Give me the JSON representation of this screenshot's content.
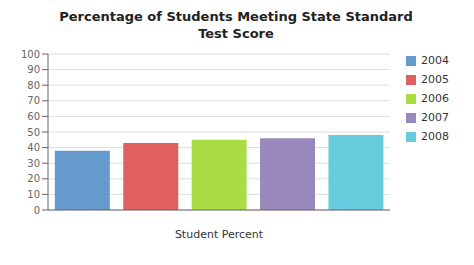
{
  "chart_data": {
    "type": "bar",
    "title": "Percentage of Students Meeting State Standard\nTest Score",
    "xlabel": "Student Percent",
    "categories": [
      "2004",
      "2005",
      "2006",
      "2007",
      "2008"
    ],
    "values": [
      38,
      43,
      45,
      46,
      48
    ],
    "colors": [
      "#6699CC",
      "#E06060",
      "#AADD44",
      "#9988BB",
      "#66CCDD"
    ],
    "ylim": [
      0,
      100
    ],
    "yticks": [
      0,
      10,
      20,
      30,
      40,
      50,
      60,
      70,
      80,
      90,
      100
    ],
    "grid": true,
    "legend": "right",
    "tick_labels": "y"
  }
}
